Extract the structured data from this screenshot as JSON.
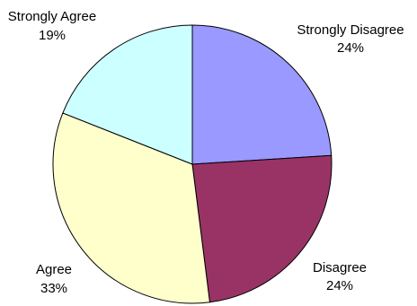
{
  "chart_data": {
    "type": "pie",
    "start_angle_deg": 0,
    "direction": "clockwise",
    "slices": [
      {
        "label": "Strongly Disagree",
        "value": 24,
        "pct_label": "24%",
        "color": "#9999ff"
      },
      {
        "label": "Disagree",
        "value": 24,
        "pct_label": "24%",
        "color": "#993366"
      },
      {
        "label": "Agree",
        "value": 33,
        "pct_label": "33%",
        "color": "#ffffcc"
      },
      {
        "label": "Strongly Agree",
        "value": 19,
        "pct_label": "19%",
        "color": "#ccffff"
      }
    ]
  }
}
